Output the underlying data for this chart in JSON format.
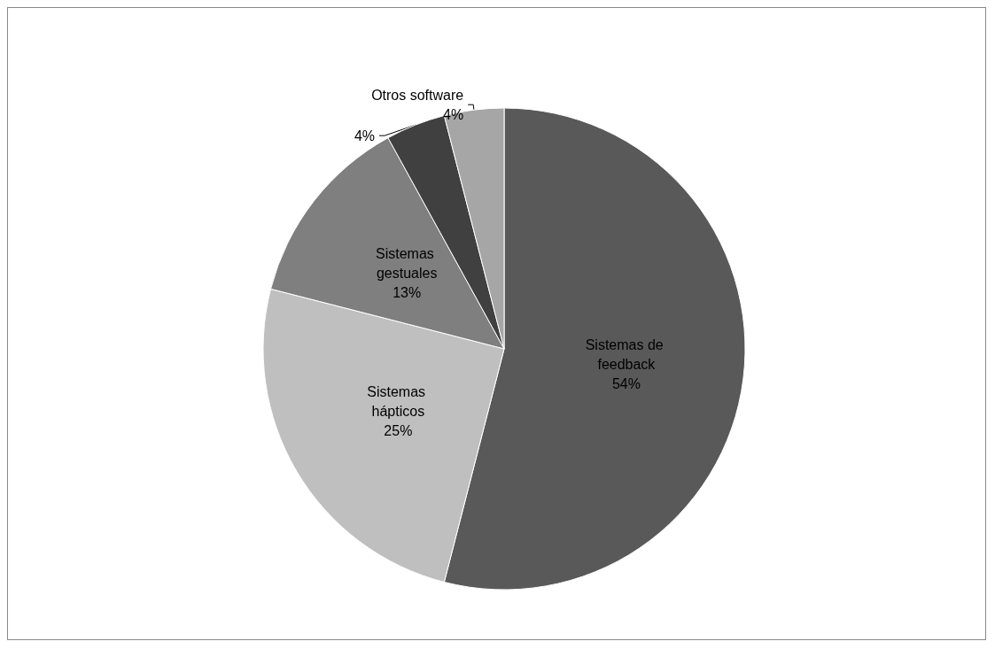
{
  "chart_data": {
    "type": "pie",
    "categories": [
      "Sistemas de feedback",
      "Sistemas hápticos",
      "Sistemas gestuales",
      null,
      "Otros software"
    ],
    "values": [
      54,
      25,
      13,
      4,
      4
    ],
    "value_labels": [
      "54%",
      "25%",
      "13%",
      "4%",
      "4%"
    ],
    "colors": [
      "#595959",
      "#bfbfbf",
      "#7f7f7f",
      "#404040",
      "#a6a6a6"
    ],
    "legend": false
  }
}
